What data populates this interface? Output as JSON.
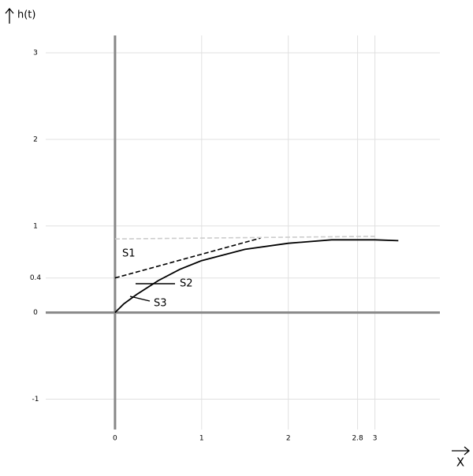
{
  "chart_data": {
    "type": "line",
    "y_label": "h(t)",
    "x_label": "X",
    "xlim": [
      -0.8,
      3.75
    ],
    "ylim": [
      -1.35,
      3.2
    ],
    "xticks": [
      0,
      1,
      2,
      2.8,
      3
    ],
    "yticks": [
      -1,
      0,
      0.4,
      1,
      2,
      3
    ],
    "grid": true,
    "series": [
      {
        "color": "#000000",
        "dash": false,
        "x": [
          0,
          0.1,
          0.25,
          0.5,
          0.75,
          1,
          1.5,
          2,
          2.5,
          3,
          3.27
        ],
        "values": [
          0,
          0.1,
          0.21,
          0.37,
          0.5,
          0.6,
          0.73,
          0.8,
          0.84,
          0.84,
          0.83
        ]
      },
      {
        "color": "#000000",
        "dash": true,
        "x": [
          0,
          1.68
        ],
        "values": [
          0.4,
          0.86
        ]
      },
      {
        "color": "#cccccc",
        "dash": true,
        "x": [
          0,
          3
        ],
        "values": [
          0.85,
          0.88
        ]
      }
    ],
    "annotations": [
      "S1",
      "S2",
      "S3"
    ]
  }
}
